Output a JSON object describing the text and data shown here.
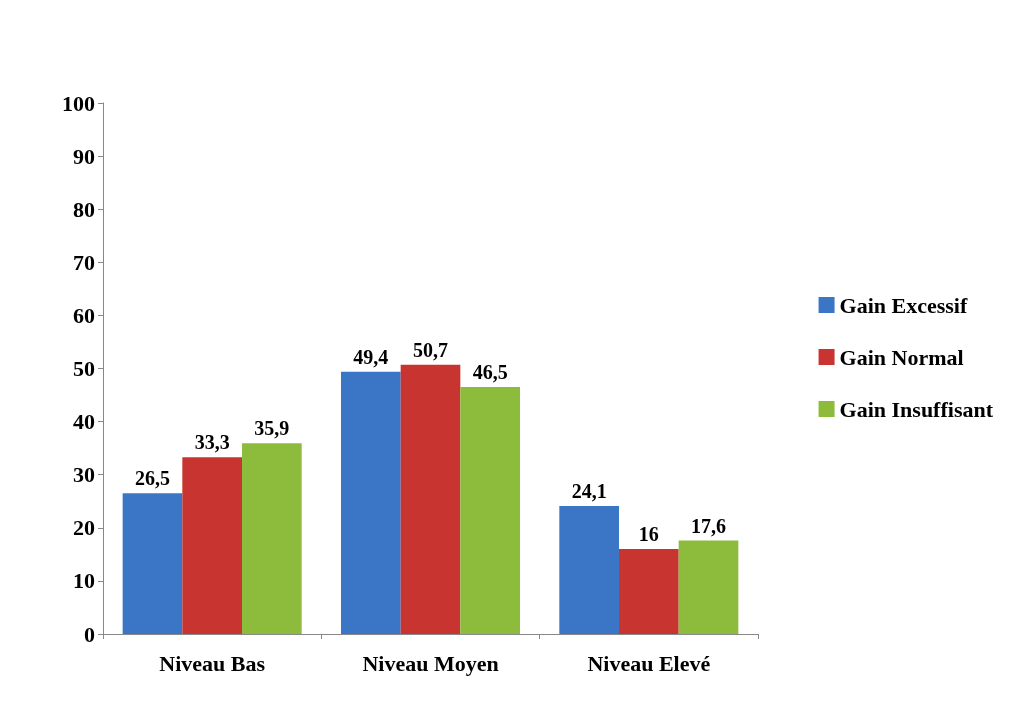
{
  "chart_data": {
    "type": "bar",
    "categories": [
      "Niveau Bas",
      "Niveau Moyen",
      "Niveau Elevé"
    ],
    "series": [
      {
        "name": "Gain Excessif",
        "color": "#3b76c6",
        "values": [
          26.5,
          49.4,
          24.1
        ],
        "value_labels": [
          "26,5",
          "49,4",
          "24,1"
        ]
      },
      {
        "name": "Gain Normal",
        "color": "#c8342f",
        "values": [
          33.3,
          50.7,
          16
        ],
        "value_labels": [
          "33,3",
          "50,7",
          "16"
        ]
      },
      {
        "name": "Gain Insuffisant",
        "color": "#8dbb3c",
        "values": [
          35.9,
          46.5,
          17.6
        ],
        "value_labels": [
          "35,9",
          "46,5",
          "17,6"
        ]
      }
    ],
    "ylim": [
      0,
      100
    ],
    "yticks": [
      0,
      10,
      20,
      30,
      40,
      50,
      60,
      70,
      80,
      90,
      100
    ],
    "grid": false,
    "legend": "right"
  }
}
